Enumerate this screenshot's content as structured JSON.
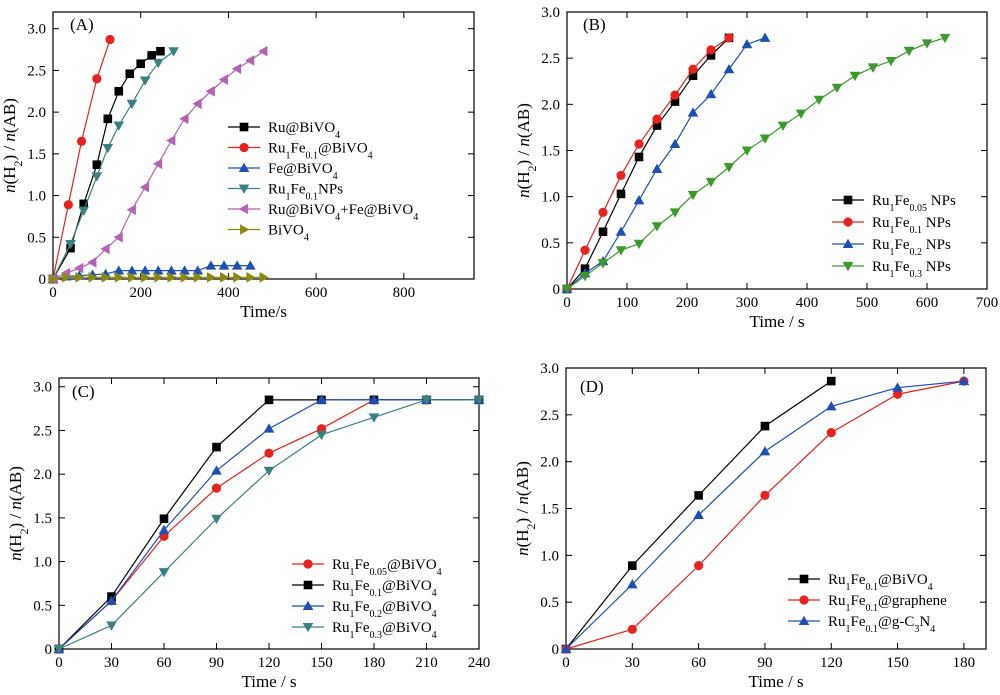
{
  "chart_data": [
    {
      "type": "line",
      "panel_label": "(A)",
      "xlabel": "Time/s",
      "ylabel": "n(H2) / n(AB)",
      "xlim": [
        0,
        960
      ],
      "ylim": [
        0,
        3.2
      ],
      "xticks": [
        0,
        200,
        400,
        600,
        800
      ],
      "yticks": [
        0,
        0.5,
        1.0,
        1.5,
        2.0,
        2.5,
        3.0
      ],
      "legend_position": "center-right",
      "series": [
        {
          "name": "Ru@BiVO4",
          "label_parts": [
            [
              "Ru@BiVO",
              "n"
            ],
            [
              "4",
              "sub"
            ]
          ],
          "color": "#000000",
          "marker": "square",
          "x": [
            0,
            40,
            70,
            100,
            125,
            150,
            175,
            200,
            225,
            245
          ],
          "y": [
            0,
            0.37,
            0.9,
            1.37,
            1.92,
            2.25,
            2.46,
            2.58,
            2.68,
            2.73
          ]
        },
        {
          "name": "Ru1Fe0.1@BiVO4",
          "label_parts": [
            [
              "Ru",
              "n"
            ],
            [
              "1",
              "sub"
            ],
            [
              "Fe",
              "n"
            ],
            [
              "0.1",
              "sub"
            ],
            [
              "@BiVO",
              "n"
            ],
            [
              "4",
              "sub"
            ]
          ],
          "color": "#e8221e",
          "marker": "circle",
          "x": [
            0,
            35,
            65,
            100,
            130
          ],
          "y": [
            0,
            0.89,
            1.65,
            2.4,
            2.87
          ]
        },
        {
          "name": "Fe@BiVO4",
          "label_parts": [
            [
              "Fe@BiVO",
              "n"
            ],
            [
              "4",
              "sub"
            ]
          ],
          "color": "#1d4fb5",
          "marker": "triangle-up",
          "x": [
            0,
            30,
            60,
            90,
            120,
            150,
            180,
            210,
            240,
            270,
            300,
            330,
            360,
            390,
            420,
            450
          ],
          "y": [
            0,
            0.03,
            0.04,
            0.05,
            0.06,
            0.1,
            0.1,
            0.1,
            0.1,
            0.1,
            0.1,
            0.1,
            0.16,
            0.16,
            0.16,
            0.16
          ]
        },
        {
          "name": "Ru1Fe0.1NPs",
          "label_parts": [
            [
              "Ru",
              "n"
            ],
            [
              "1",
              "sub"
            ],
            [
              "Fe",
              "n"
            ],
            [
              "0.1",
              "sub"
            ],
            [
              "NPs",
              "n"
            ]
          ],
          "color": "#3b8080",
          "marker": "triangle-down",
          "x": [
            0,
            40,
            70,
            100,
            125,
            150,
            180,
            210,
            240,
            275
          ],
          "y": [
            0,
            0.42,
            0.82,
            1.23,
            1.57,
            1.84,
            2.1,
            2.38,
            2.59,
            2.73
          ]
        },
        {
          "name": "Ru@BiVO4+Fe@BiVO4",
          "label_parts": [
            [
              "Ru@BiVO",
              "n"
            ],
            [
              "4",
              "sub"
            ],
            [
              "+Fe@BiVO",
              "n"
            ],
            [
              "4",
              "sub"
            ]
          ],
          "color": "#b462b4",
          "marker": "triangle-left",
          "x": [
            0,
            30,
            60,
            90,
            120,
            150,
            180,
            210,
            240,
            270,
            300,
            330,
            360,
            390,
            420,
            450,
            480
          ],
          "y": [
            0,
            0.07,
            0.13,
            0.2,
            0.36,
            0.5,
            0.83,
            1.1,
            1.38,
            1.66,
            1.92,
            2.1,
            2.25,
            2.39,
            2.52,
            2.62,
            2.73
          ]
        },
        {
          "name": "BiVO4",
          "label_parts": [
            [
              "BiVO",
              "n"
            ],
            [
              "4",
              "sub"
            ]
          ],
          "color": "#8a8a10",
          "marker": "triangle-right",
          "x": [
            0,
            30,
            60,
            90,
            120,
            150,
            180,
            210,
            240,
            270,
            300,
            330,
            360,
            390,
            420,
            450,
            480
          ],
          "y": [
            0,
            0.02,
            0.02,
            0.02,
            0.02,
            0.02,
            0.02,
            0.02,
            0.02,
            0.02,
            0.02,
            0.02,
            0.02,
            0.02,
            0.02,
            0.02,
            0.02
          ]
        }
      ]
    },
    {
      "type": "line",
      "panel_label": "(B)",
      "xlabel": "Time / s",
      "ylabel": "n(H2) / n(AB)",
      "xlim": [
        0,
        700
      ],
      "ylim": [
        0,
        3.0
      ],
      "xticks": [
        0,
        100,
        200,
        300,
        400,
        500,
        600,
        700
      ],
      "yticks": [
        0,
        0.5,
        1.0,
        1.5,
        2.0,
        2.5,
        3.0
      ],
      "legend_position": "bottom-right",
      "series": [
        {
          "name": "Ru1Fe0.05 NPs",
          "label_parts": [
            [
              "Ru",
              "n"
            ],
            [
              "1",
              "sub"
            ],
            [
              "Fe",
              "n"
            ],
            [
              "0.05",
              "sub"
            ],
            [
              " NPs",
              "n"
            ]
          ],
          "color": "#000000",
          "marker": "square",
          "x": [
            0,
            30,
            60,
            90,
            120,
            150,
            180,
            210,
            240,
            270
          ],
          "y": [
            0,
            0.22,
            0.62,
            1.03,
            1.43,
            1.77,
            2.03,
            2.31,
            2.53,
            2.72
          ]
        },
        {
          "name": "Ru1Fe0.1 NPs",
          "label_parts": [
            [
              "Ru",
              "n"
            ],
            [
              "1",
              "sub"
            ],
            [
              "Fe",
              "n"
            ],
            [
              "0.1",
              "sub"
            ],
            [
              " NPs",
              "n"
            ]
          ],
          "color": "#e8221e",
          "marker": "circle",
          "x": [
            0,
            30,
            60,
            90,
            120,
            150,
            180,
            210,
            240,
            270
          ],
          "y": [
            0,
            0.42,
            0.83,
            1.23,
            1.57,
            1.84,
            2.1,
            2.38,
            2.59,
            2.72
          ]
        },
        {
          "name": "Ru1Fe0.2 NPs",
          "label_parts": [
            [
              "Ru",
              "n"
            ],
            [
              "1",
              "sub"
            ],
            [
              "Fe",
              "n"
            ],
            [
              "0.2",
              "sub"
            ],
            [
              " NPs",
              "n"
            ]
          ],
          "color": "#1d4fb5",
          "marker": "triangle-up",
          "x": [
            0,
            30,
            60,
            90,
            120,
            150,
            180,
            210,
            240,
            270,
            300,
            330
          ],
          "y": [
            0,
            0.17,
            0.3,
            0.62,
            0.96,
            1.3,
            1.57,
            1.91,
            2.11,
            2.38,
            2.65,
            2.72
          ]
        },
        {
          "name": "Ru1Fe0.3 NPs",
          "label_parts": [
            [
              "Ru",
              "n"
            ],
            [
              "1",
              "sub"
            ],
            [
              "Fe",
              "n"
            ],
            [
              "0.3",
              "sub"
            ],
            [
              " NPs",
              "n"
            ]
          ],
          "color": "#3a9a2a",
          "marker": "triangle-down",
          "x": [
            0,
            30,
            60,
            90,
            120,
            150,
            180,
            210,
            240,
            270,
            300,
            330,
            360,
            390,
            420,
            450,
            480,
            510,
            540,
            570,
            600,
            630
          ],
          "y": [
            0,
            0.14,
            0.28,
            0.42,
            0.49,
            0.68,
            0.83,
            1.02,
            1.16,
            1.32,
            1.5,
            1.63,
            1.77,
            1.9,
            2.05,
            2.18,
            2.31,
            2.4,
            2.47,
            2.58,
            2.66,
            2.72
          ]
        }
      ]
    },
    {
      "type": "line",
      "panel_label": "(C)",
      "xlabel": "Time / s",
      "ylabel": "n(H2) / n(AB)",
      "xlim": [
        0,
        240
      ],
      "ylim": [
        0,
        3.1
      ],
      "xticks": [
        0,
        30,
        60,
        90,
        120,
        150,
        180,
        210,
        240
      ],
      "yticks": [
        0,
        0.5,
        1.0,
        1.5,
        2.0,
        2.5,
        3.0
      ],
      "legend_position": "bottom-right",
      "series": [
        {
          "name": "Ru1Fe0.05@BiVO4",
          "label_parts": [
            [
              "Ru",
              "n"
            ],
            [
              "1",
              "sub"
            ],
            [
              "Fe",
              "n"
            ],
            [
              "0.05",
              "sub"
            ],
            [
              "@BiVO",
              "n"
            ],
            [
              "4",
              "sub"
            ]
          ],
          "color": "#e8221e",
          "marker": "circle",
          "x": [
            0,
            30,
            60,
            90,
            120,
            150,
            180,
            210,
            240
          ],
          "y": [
            0,
            0.55,
            1.29,
            1.84,
            2.24,
            2.52,
            2.85,
            2.85,
            2.85
          ]
        },
        {
          "name": "Ru1Fe0.1@BiVO4",
          "label_parts": [
            [
              "Ru",
              "n"
            ],
            [
              "1",
              "sub"
            ],
            [
              "Fe",
              "n"
            ],
            [
              "0.1",
              "sub"
            ],
            [
              "@BiVO",
              "n"
            ],
            [
              "4",
              "sub"
            ]
          ],
          "color": "#000000",
          "marker": "square",
          "x": [
            0,
            30,
            60,
            90,
            120,
            150,
            180,
            210,
            240
          ],
          "y": [
            0,
            0.6,
            1.49,
            2.31,
            2.85,
            2.85,
            2.85,
            2.85,
            2.85
          ]
        },
        {
          "name": "Ru1Fe0.2@BiVO4",
          "label_parts": [
            [
              "Ru",
              "n"
            ],
            [
              "1",
              "sub"
            ],
            [
              "Fe",
              "n"
            ],
            [
              "0.2",
              "sub"
            ],
            [
              "@BiVO",
              "n"
            ],
            [
              "4",
              "sub"
            ]
          ],
          "color": "#1d4fb5",
          "marker": "triangle-up",
          "x": [
            0,
            30,
            60,
            90,
            120,
            150,
            180,
            210,
            240
          ],
          "y": [
            0,
            0.55,
            1.36,
            2.04,
            2.52,
            2.85,
            2.85,
            2.85,
            2.85
          ]
        },
        {
          "name": "Ru1Fe0.3@BiVO4",
          "label_parts": [
            [
              "Ru",
              "n"
            ],
            [
              "1",
              "sub"
            ],
            [
              "Fe",
              "n"
            ],
            [
              "0.3",
              "sub"
            ],
            [
              "@BiVO",
              "n"
            ],
            [
              "4",
              "sub"
            ]
          ],
          "color": "#3b8080",
          "marker": "triangle-down",
          "x": [
            0,
            30,
            60,
            90,
            120,
            150,
            180,
            210,
            240
          ],
          "y": [
            0,
            0.27,
            0.88,
            1.49,
            2.04,
            2.45,
            2.65,
            2.85,
            2.85
          ]
        }
      ]
    },
    {
      "type": "line",
      "panel_label": "(D)",
      "xlabel": "Time / s",
      "ylabel": "n(H2) / n(AB)",
      "xlim": [
        0,
        190
      ],
      "ylim": [
        0,
        3.0
      ],
      "xticks": [
        0,
        30,
        60,
        90,
        120,
        150,
        180
      ],
      "yticks": [
        0,
        0.5,
        1.0,
        1.5,
        2.0,
        2.5,
        3.0
      ],
      "legend_position": "bottom-right",
      "series": [
        {
          "name": "Ru1Fe0.1@BiVO4",
          "label_parts": [
            [
              "Ru",
              "n"
            ],
            [
              "1",
              "sub"
            ],
            [
              "Fe",
              "n"
            ],
            [
              "0.1",
              "sub"
            ],
            [
              "@BiVO",
              "n"
            ],
            [
              "4",
              "sub"
            ]
          ],
          "color": "#000000",
          "marker": "square",
          "x": [
            0,
            30,
            60,
            90,
            120
          ],
          "y": [
            0,
            0.89,
            1.64,
            2.38,
            2.86
          ]
        },
        {
          "name": "Ru1Fe0.1@graphene",
          "label_parts": [
            [
              "Ru",
              "n"
            ],
            [
              "1",
              "sub"
            ],
            [
              "Fe",
              "n"
            ],
            [
              "0.1",
              "sub"
            ],
            [
              "@graphene",
              "n"
            ]
          ],
          "color": "#e8221e",
          "marker": "circle",
          "x": [
            0,
            30,
            60,
            90,
            120,
            150,
            180
          ],
          "y": [
            0,
            0.21,
            0.89,
            1.64,
            2.31,
            2.72,
            2.86
          ]
        },
        {
          "name": "Ru1Fe0.1@g-C3N4",
          "label_parts": [
            [
              "Ru",
              "n"
            ],
            [
              "1",
              "sub"
            ],
            [
              "Fe",
              "n"
            ],
            [
              "0.1",
              "sub"
            ],
            [
              "@g-C",
              "n"
            ],
            [
              "3",
              "sub"
            ],
            [
              "N",
              "n"
            ],
            [
              "4",
              "sub"
            ]
          ],
          "color": "#1d4fb5",
          "marker": "triangle-up",
          "x": [
            0,
            30,
            60,
            90,
            120,
            150,
            180
          ],
          "y": [
            0,
            0.69,
            1.43,
            2.11,
            2.59,
            2.79,
            2.86
          ]
        }
      ]
    }
  ]
}
